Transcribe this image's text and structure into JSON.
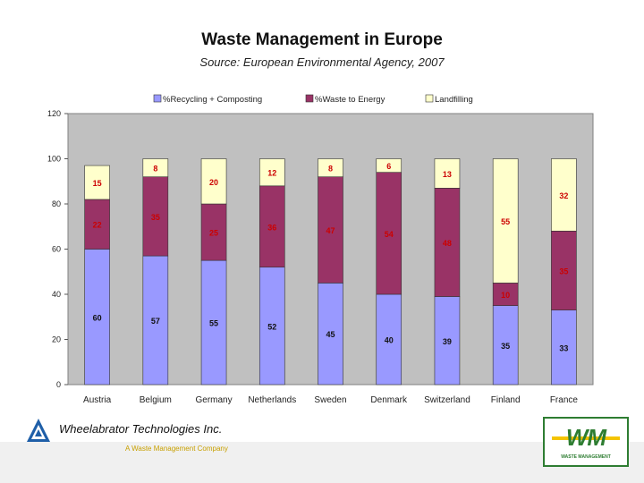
{
  "header": {
    "title": "Waste Management in Europe",
    "subtitle": "Source: European Environmental  Agency, 2007"
  },
  "chart_data": {
    "type": "bar",
    "stacked": true,
    "title": "Waste Management in Europe",
    "subtitle": "Source: European Environmental  Agency, 2007",
    "categories": [
      "Austria",
      "Belgium",
      "Germany",
      "Netherlands",
      "Sweden",
      "Denmark",
      "Switzerland",
      "Finland",
      "France"
    ],
    "series": [
      {
        "name": "%Recycling + Composting",
        "color": "#9999ff",
        "values": [
          60,
          57,
          55,
          52,
          45,
          40,
          39,
          35,
          33
        ]
      },
      {
        "name": "%Waste to Energy",
        "color": "#993366",
        "values": [
          22,
          35,
          25,
          36,
          47,
          54,
          48,
          10,
          35
        ]
      },
      {
        "name": "Landfilling",
        "color": "#ffffcc",
        "values": [
          15,
          8,
          20,
          12,
          8,
          6,
          13,
          55,
          32
        ]
      }
    ],
    "ylim": [
      0,
      120
    ],
    "yticks": [
      0,
      20,
      40,
      60,
      80,
      100,
      120
    ],
    "grid": false,
    "legend": "top",
    "xlabel": "",
    "ylabel": ""
  },
  "footer": {
    "company": "Wheelabrator Technologies Inc.",
    "tagline": "A Waste Management Company",
    "logo_text": "WM",
    "logo_subtext": "WASTE MANAGEMENT"
  }
}
